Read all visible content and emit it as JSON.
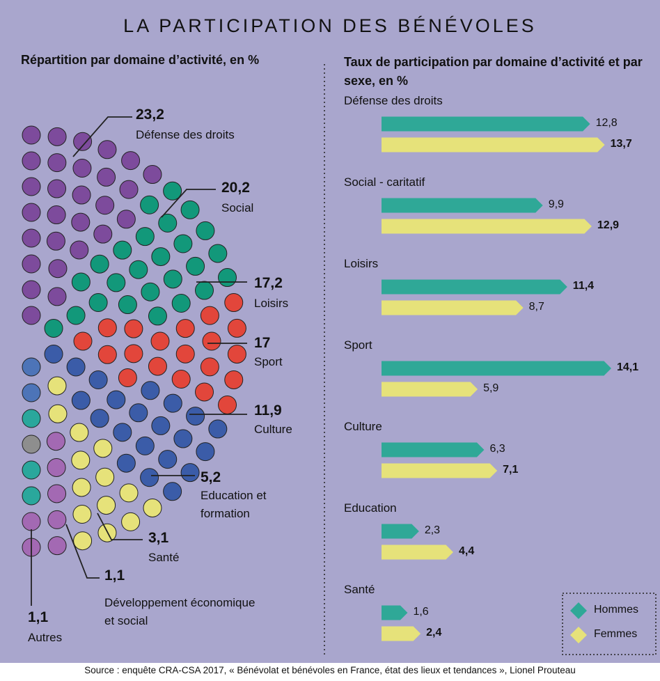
{
  "title": "LA PARTICIPATION DES BÉNÉVOLES",
  "source": "Source : enquête CRA-CSA 2017, « Bénévolat et bénévoles en France, état des lieux et tendances », Lionel Prouteau",
  "chart_data": [
    {
      "type": "dot",
      "title": "Répartition par domaine d’activité, en %",
      "categories": [
        "Défense des droits",
        "Social",
        "Loisirs",
        "Sport",
        "Culture",
        "Education et formation",
        "Santé",
        "Développement économique et social",
        "Autres"
      ],
      "values": [
        23.2,
        20.2,
        17.2,
        17,
        11.9,
        5.2,
        3.1,
        1.1,
        1.1
      ],
      "value_labels": [
        "23,2",
        "20,2",
        "17,2",
        "17",
        "11,9",
        "5,2",
        "3,1",
        "1,1",
        "1,1"
      ],
      "colors": [
        "#7d4b9c",
        "#12987a",
        "#e2463b",
        "#3b5ca8",
        "#e6e27a",
        "#a369b3",
        "#2aa79c",
        "#4d74b8",
        "#8e8e8e"
      ]
    },
    {
      "type": "bar",
      "orientation": "horizontal",
      "title": "Taux de participation par domaine d’activité et par sexe, en %",
      "categories": [
        "Défense des droits",
        "Social - caritatif",
        "Loisirs",
        "Sport",
        "Culture",
        "Education",
        "Santé"
      ],
      "series": [
        {
          "name": "Hommes",
          "color": "#2fa897",
          "values": [
            12.8,
            9.9,
            11.4,
            14.1,
            6.3,
            2.3,
            1.6
          ],
          "value_labels": [
            "12,8",
            "9,9",
            "11,4",
            "14,1",
            "6,3",
            "2,3",
            "1,6"
          ]
        },
        {
          "name": "Femmes",
          "color": "#e6e27a",
          "values": [
            13.7,
            12.9,
            8.7,
            5.9,
            7.1,
            4.4,
            2.4
          ],
          "value_labels": [
            "13,7",
            "12,9",
            "8,7",
            "5,9",
            "7,1",
            "4,4",
            "2,4"
          ]
        }
      ],
      "legend": "bottom-right"
    }
  ]
}
